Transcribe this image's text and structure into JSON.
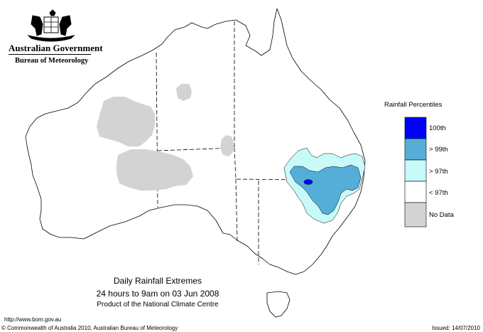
{
  "logo": {
    "line1": "Australian Government",
    "line2": "Bureau of Meteorology"
  },
  "legend": {
    "title": "Rainfall Percentiles",
    "items": [
      {
        "label": "100th",
        "color": "#0000ff"
      },
      {
        "label": "> 99th",
        "color": "#55aed8"
      },
      {
        "label": "> 97th",
        "color": "#c8fafa"
      },
      {
        "label": "< 97th",
        "color": "#ffffff"
      },
      {
        "label": "No Data",
        "color": "#d3d3d3"
      }
    ]
  },
  "caption": {
    "title": "Daily Rainfall Extremes",
    "period": "24 hours to 9am on 03 Jun 2008",
    "product": "Product of the National Climate Centre"
  },
  "footer": {
    "url": "http://www.bom.gov.au",
    "copyright": "© Commonwealth of Australia 2010, Australian Bureau of Meteorology",
    "issued": "Issued: 14/07/2010"
  }
}
